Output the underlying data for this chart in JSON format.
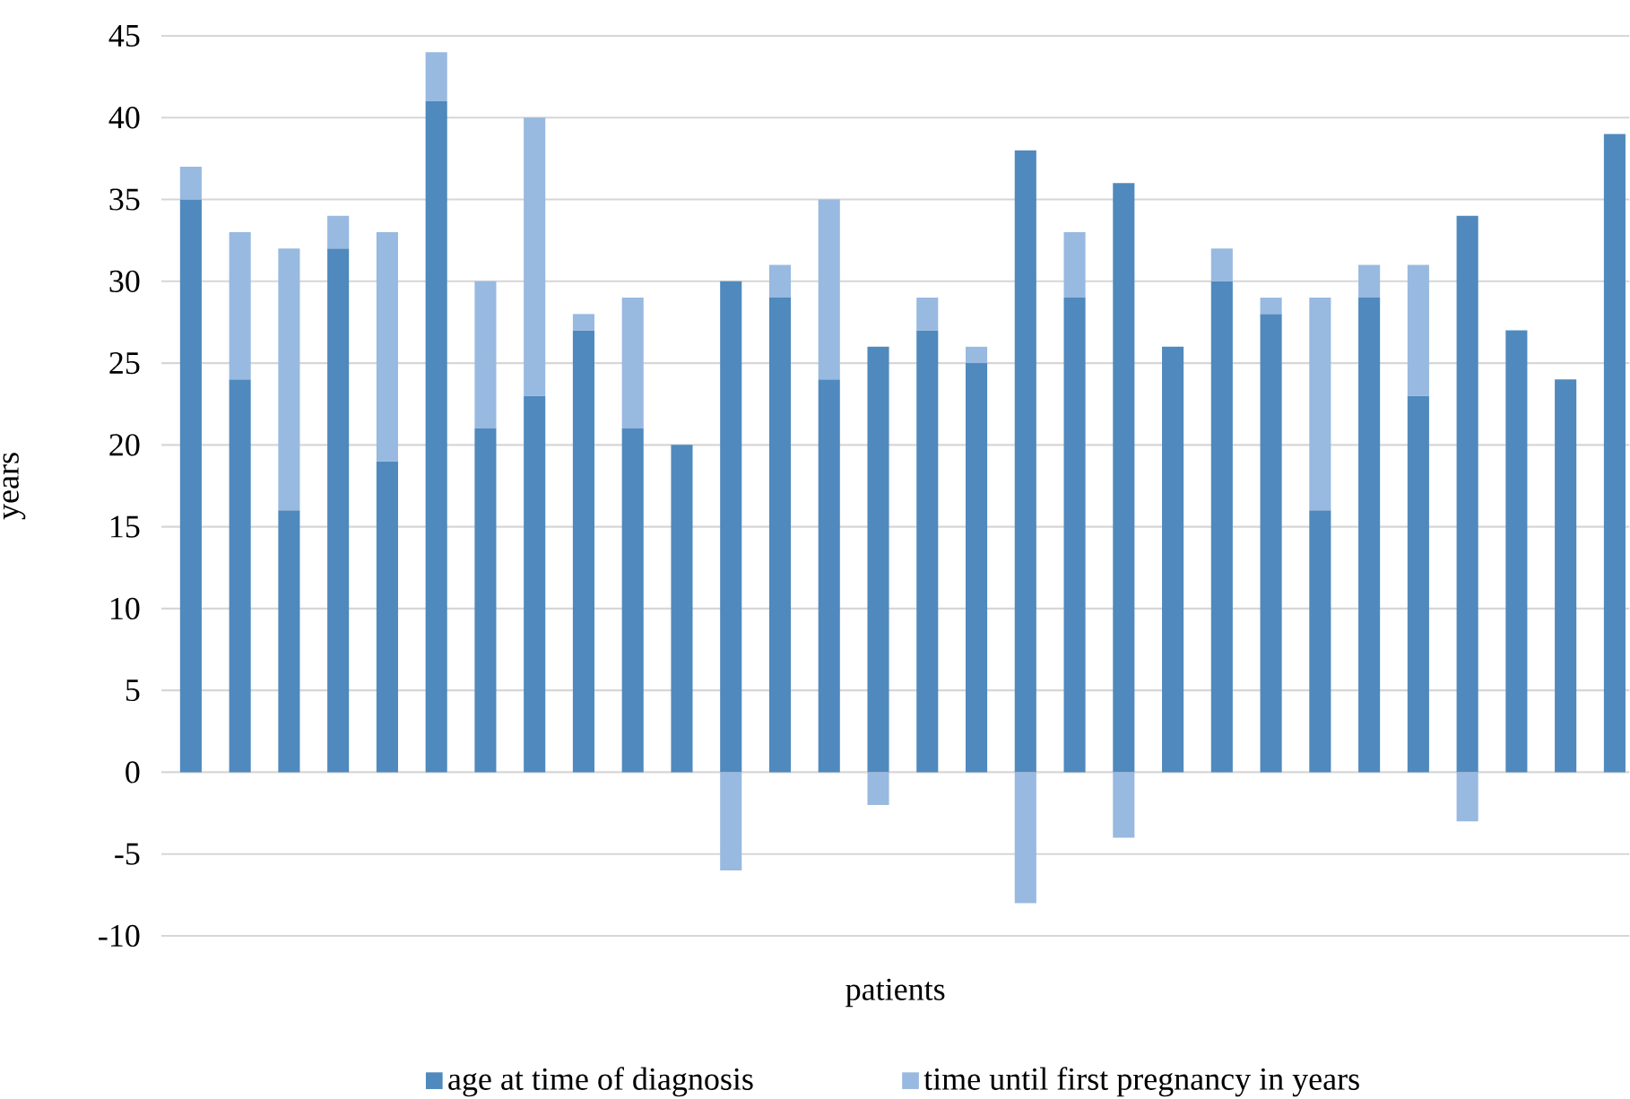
{
  "chart_data": {
    "type": "bar",
    "stacked": true,
    "xlabel": "patients",
    "ylabel": "years",
    "categories": [
      null,
      null,
      null,
      null,
      null,
      null,
      null,
      null,
      null,
      null,
      null,
      null,
      null,
      null,
      null,
      null,
      null,
      null,
      null,
      null,
      null,
      null,
      null,
      null,
      null,
      null,
      null,
      null,
      null,
      null
    ],
    "series": [
      {
        "name": "age at time of diagnosis",
        "color": "#4f89bd",
        "values": [
          35,
          24,
          16,
          32,
          19,
          41,
          21,
          23,
          27,
          21,
          20,
          30,
          29,
          24,
          26,
          27,
          25,
          38,
          29,
          36,
          26,
          30,
          28,
          16,
          29,
          23,
          34,
          27,
          24,
          39
        ]
      },
      {
        "name": "time until first pregnancy in years",
        "color": "#98b9e0",
        "values": [
          2,
          9,
          16,
          2,
          14,
          3,
          9,
          17,
          1,
          8,
          null,
          -6,
          2,
          11,
          -2,
          2,
          1,
          -8,
          4,
          -4,
          null,
          2,
          1,
          13,
          2,
          8,
          -3,
          null,
          null,
          null
        ]
      }
    ],
    "ylim": [
      -10,
      45
    ],
    "yticks": [
      -10,
      -5,
      0,
      5,
      10,
      15,
      20,
      25,
      30,
      35,
      40,
      45
    ],
    "grid": "y",
    "legend": "bottom"
  }
}
